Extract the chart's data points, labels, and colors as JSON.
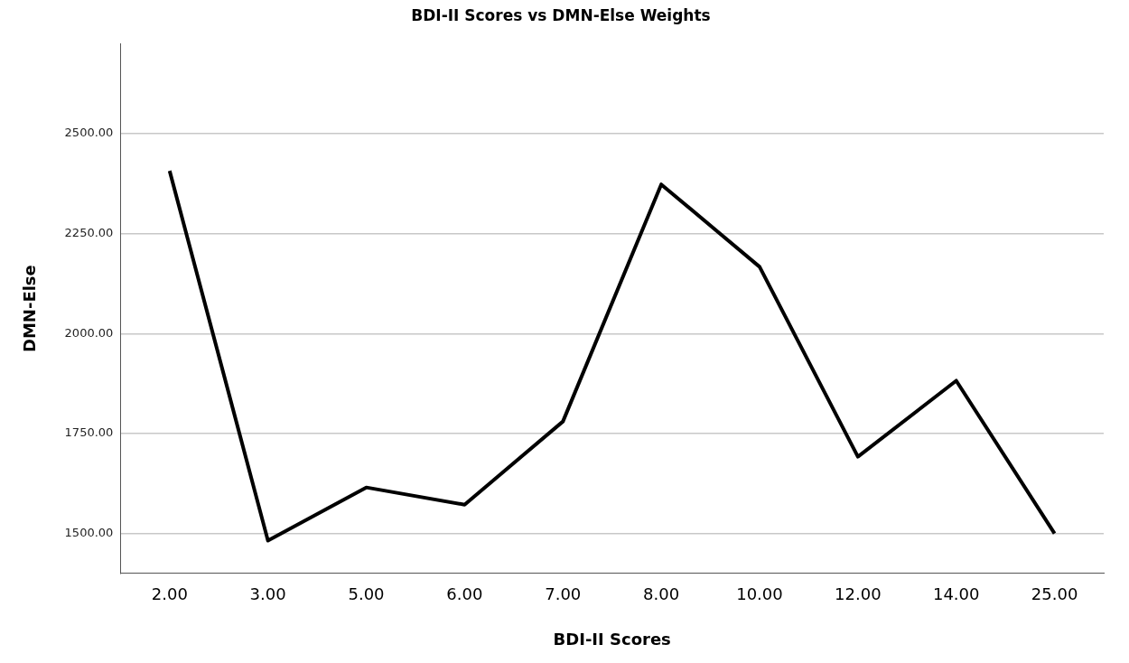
{
  "chart_data": {
    "type": "line",
    "title": "BDI-II Scores vs DMN-Else Weights",
    "xlabel": "BDI-II Scores",
    "ylabel": "DMN-Else",
    "categories": [
      "2.00",
      "3.00",
      "5.00",
      "6.00",
      "7.00",
      "8.00",
      "10.00",
      "12.00",
      "14.00",
      "25.00"
    ],
    "series": [
      {
        "color": "#000000",
        "values": [
          2407,
          1482,
          1615,
          1572,
          1780,
          2373,
          2167,
          1692,
          1882,
          1500
        ]
      }
    ],
    "ylim": [
      1400,
      2725
    ],
    "yticks": [
      {
        "value": 1500,
        "label": "1500.00"
      },
      {
        "value": 1750,
        "label": "1750.00"
      },
      {
        "value": 2000,
        "label": "2000.00"
      },
      {
        "value": 2250,
        "label": "2250.00"
      },
      {
        "value": 2500,
        "label": "2500.00"
      }
    ],
    "grid": "y",
    "legend": false,
    "marker": "none",
    "line_style": "solid"
  }
}
